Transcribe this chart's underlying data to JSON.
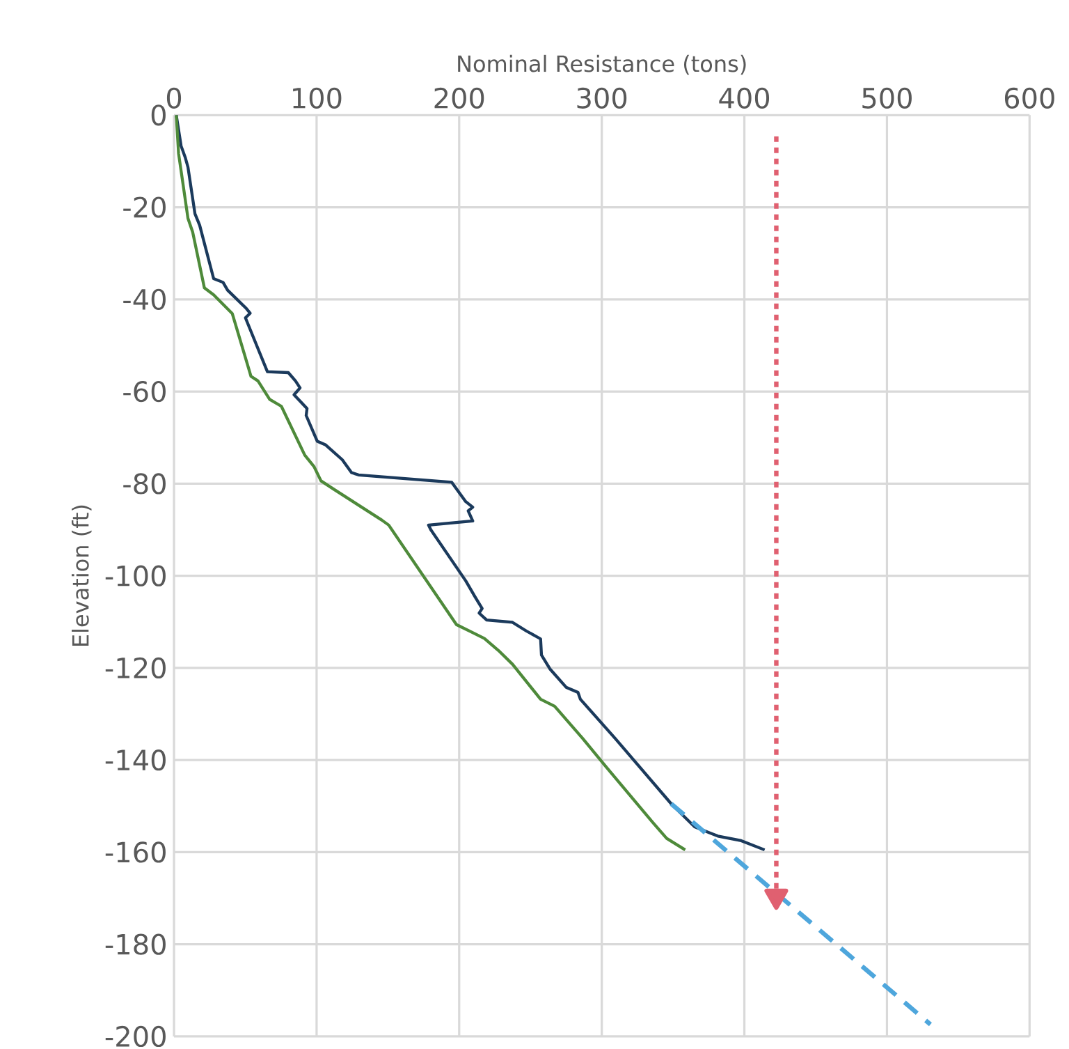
{
  "chart_data": {
    "type": "line",
    "xlabel": "Nominal Resistance (tons)",
    "ylabel": "Elevation (ft)",
    "xlim": [
      0,
      600
    ],
    "ylim": [
      -200,
      0
    ],
    "xticks": [
      0,
      100,
      200,
      300,
      400,
      500,
      600
    ],
    "yticks": [
      -200,
      -180,
      -160,
      -140,
      -120,
      -100,
      -80,
      -60,
      -40,
      -20,
      0
    ],
    "grid": true,
    "marker": "none",
    "series": [
      {
        "color": "#1b3a5c",
        "line_style": "solid",
        "x": [
          1.6,
          5,
          8,
          9.8,
          14.7,
          18,
          27.8,
          34.4,
          37.6,
          50.8,
          53.4,
          50.1,
          65.5,
          80.2,
          85.2,
          88.4,
          84.2,
          93.3,
          92.7,
          100.5,
          106.4,
          118,
          124.5,
          129.4,
          194.8,
          204.6,
          209.5,
          206.3,
          209.5,
          178.5,
          180.1,
          204.6,
          211.2,
          216.1,
          214,
          219.3,
          237.4,
          247.2,
          257.1,
          257.7,
          263.6,
          275,
          283.3,
          285,
          309.4,
          348.7,
          365.1,
          381.4,
          397.8,
          414.2
        ],
        "values": [
          0,
          -6.7,
          -9.3,
          -11.3,
          -21.4,
          -23.9,
          -35.5,
          -36.3,
          -38,
          -42,
          -43,
          -44,
          -55.7,
          -55.9,
          -57.7,
          -59.2,
          -60.7,
          -63.7,
          -65.2,
          -70.8,
          -71.6,
          -74.8,
          -77.6,
          -78.1,
          -79.7,
          -83.9,
          -85.1,
          -85.9,
          -88.1,
          -89,
          -90,
          -101.1,
          -104.6,
          -107.1,
          -108.1,
          -109.6,
          -110.1,
          -112,
          -113.7,
          -117.2,
          -120.2,
          -124.2,
          -125.3,
          -126.8,
          -135.3,
          -149.5,
          -154.5,
          -156.5,
          -157.5,
          -159.5
        ]
      },
      {
        "color": "#4e8a3a",
        "line_style": "solid",
        "x": [
          1.6,
          3.2,
          9.8,
          13.1,
          21.3,
          27.8,
          40.9,
          54,
          58.9,
          67.1,
          75.3,
          91.7,
          98.2,
          103.1,
          113,
          145.7,
          150.6,
          198.1,
          207.9,
          217.7,
          227.5,
          237.4,
          257.1,
          266.9,
          286.6,
          302.8,
          335.6,
          345.5,
          358.5
        ],
        "values": [
          0,
          -8.3,
          -22.4,
          -25.4,
          -37.5,
          -39,
          -43.1,
          -56.7,
          -57.7,
          -61.7,
          -63.2,
          -73.8,
          -76.3,
          -79.4,
          -81.4,
          -87.9,
          -89,
          -110.6,
          -112.1,
          -113.6,
          -116.2,
          -119.2,
          -126.8,
          -128.3,
          -135.3,
          -141.4,
          -153.5,
          -157,
          -159.5
        ]
      },
      {
        "color": "#4ea6dc",
        "line_style": "dashed",
        "x": [
          348.7,
          530.5
        ],
        "values": [
          -149.5,
          -197.4
        ]
      },
      {
        "color": "#e06070",
        "line_style": "dotted",
        "marker": "triangle",
        "x": [
          422.4,
          422.4
        ],
        "values": [
          -4.6,
          -169.6
        ]
      }
    ]
  }
}
